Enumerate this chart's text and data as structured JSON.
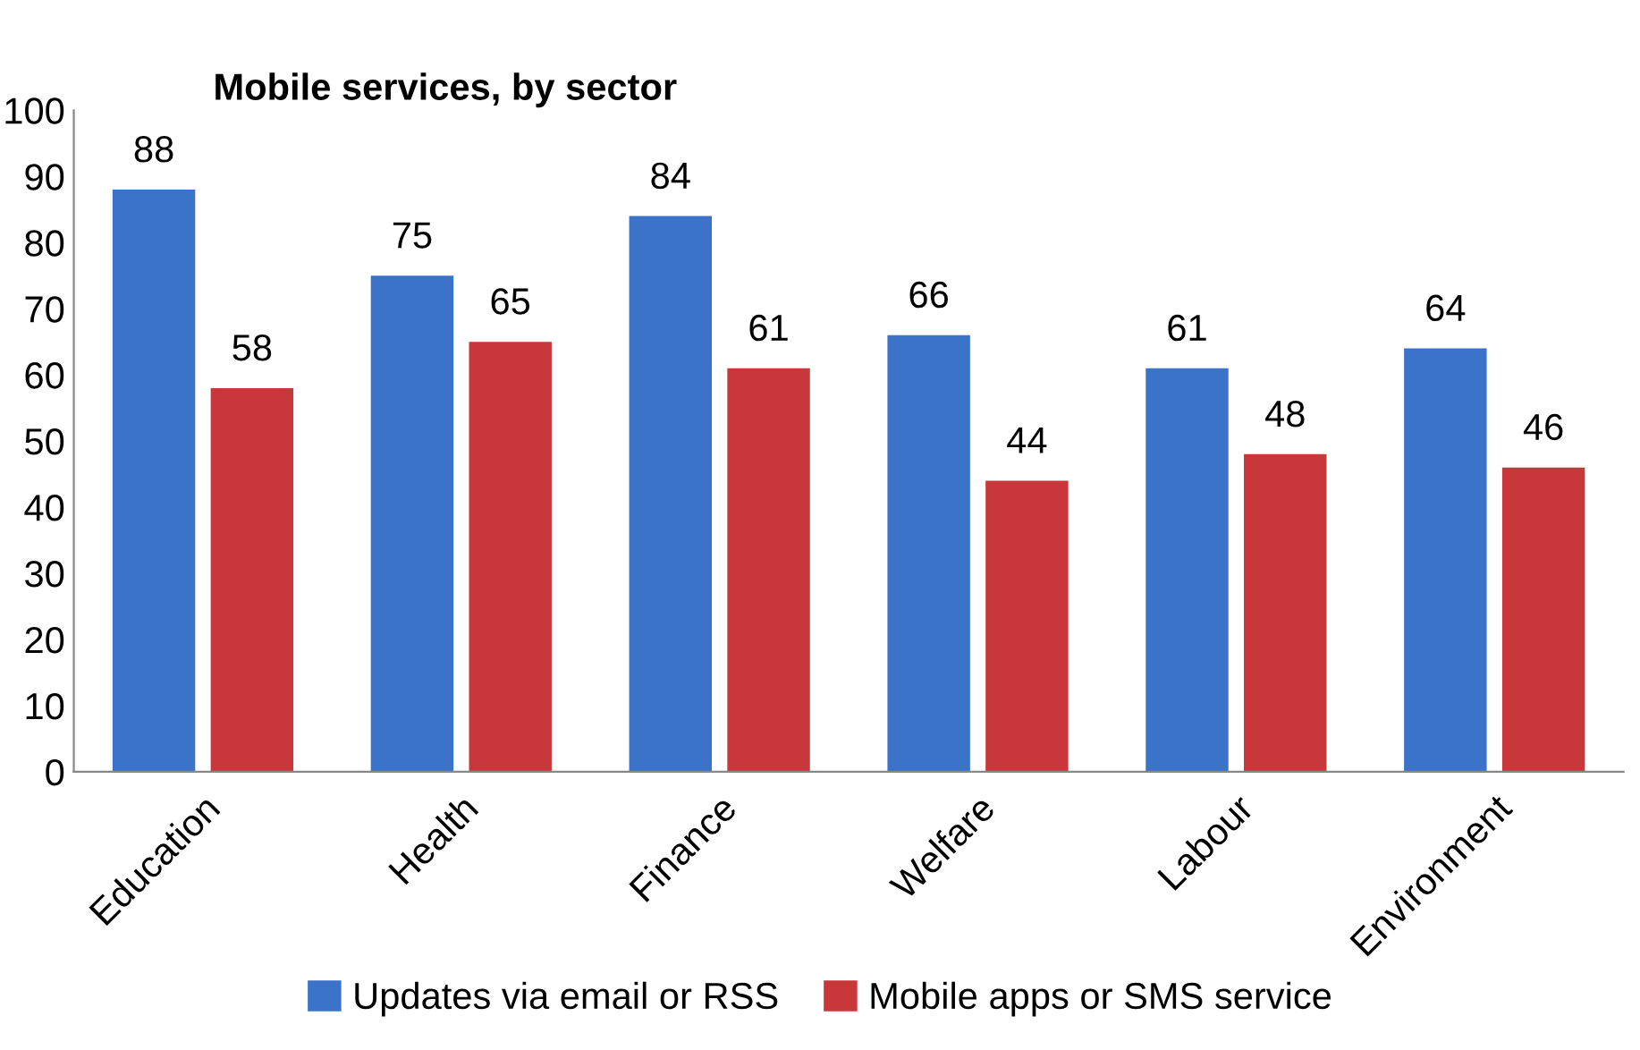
{
  "chart_data": {
    "type": "bar",
    "title": "Mobile services, by sector",
    "categories": [
      "Education",
      "Health",
      "Finance",
      "Welfare",
      "Labour",
      "Environment"
    ],
    "series": [
      {
        "name": "Updates via email or RSS",
        "color": "#3b73c9",
        "values": [
          88,
          75,
          84,
          66,
          61,
          64
        ]
      },
      {
        "name": "Mobile apps or SMS service",
        "color": "#c8383a",
        "values": [
          58,
          65,
          61,
          44,
          48,
          46
        ]
      }
    ],
    "ylim": [
      0,
      100
    ],
    "yticks": [
      0,
      10,
      20,
      30,
      40,
      50,
      60,
      70,
      80,
      90,
      100
    ],
    "grid": false,
    "legend": "bottom",
    "data_labels": true
  }
}
